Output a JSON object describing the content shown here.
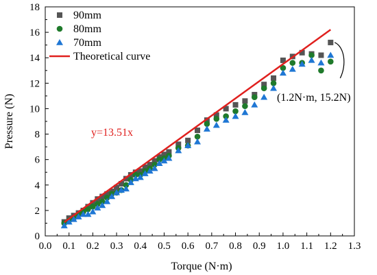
{
  "chart_data": {
    "type": "scatter",
    "xlabel": "Torque (N·m)",
    "ylabel": "Pressure (N)",
    "xlim": [
      0.0,
      1.3
    ],
    "ylim": [
      0,
      18
    ],
    "xticks": [
      "0.0",
      "0.1",
      "0.2",
      "0.3",
      "0.4",
      "0.5",
      "0.6",
      "0.7",
      "0.8",
      "0.9",
      "1.0",
      "1.1",
      "1.2",
      "1.3"
    ],
    "yticks": [
      "0",
      "2",
      "4",
      "6",
      "8",
      "10",
      "12",
      "14",
      "16",
      "18"
    ],
    "legend_position": "top-left",
    "series": [
      {
        "name": "90mm",
        "marker": "square",
        "color": "#555555",
        "x": [
          0.08,
          0.1,
          0.12,
          0.14,
          0.16,
          0.18,
          0.2,
          0.22,
          0.24,
          0.26,
          0.28,
          0.3,
          0.32,
          0.34,
          0.36,
          0.38,
          0.4,
          0.42,
          0.44,
          0.46,
          0.48,
          0.5,
          0.52,
          0.56,
          0.6,
          0.64,
          0.68,
          0.72,
          0.76,
          0.8,
          0.84,
          0.88,
          0.92,
          0.96,
          1.0,
          1.04,
          1.08,
          1.12,
          1.16,
          1.2
        ],
        "y": [
          1.1,
          1.4,
          1.6,
          1.8,
          2.0,
          2.3,
          2.6,
          2.9,
          3.1,
          3.3,
          3.5,
          3.8,
          4.1,
          4.5,
          4.8,
          5.0,
          5.1,
          5.4,
          5.6,
          5.9,
          6.2,
          6.4,
          6.6,
          7.2,
          7.5,
          8.3,
          9.1,
          9.5,
          10.0,
          10.3,
          10.6,
          11.1,
          11.9,
          12.4,
          13.8,
          14.1,
          14.4,
          14.3,
          14.2,
          15.2
        ]
      },
      {
        "name": "80mm",
        "marker": "circle",
        "color": "#1f7a2b",
        "x": [
          0.08,
          0.1,
          0.12,
          0.14,
          0.16,
          0.18,
          0.2,
          0.22,
          0.24,
          0.26,
          0.28,
          0.3,
          0.32,
          0.34,
          0.36,
          0.38,
          0.4,
          0.42,
          0.44,
          0.46,
          0.48,
          0.5,
          0.52,
          0.56,
          0.6,
          0.64,
          0.68,
          0.72,
          0.76,
          0.8,
          0.84,
          0.88,
          0.92,
          0.96,
          1.0,
          1.04,
          1.08,
          1.12,
          1.16,
          1.2
        ],
        "y": [
          1.0,
          1.2,
          1.4,
          1.7,
          1.9,
          2.1,
          2.3,
          2.5,
          2.7,
          3.0,
          3.3,
          3.4,
          3.6,
          4.0,
          4.4,
          4.8,
          4.8,
          5.1,
          5.3,
          5.6,
          6.0,
          6.1,
          6.3,
          6.9,
          7.1,
          7.8,
          8.8,
          9.2,
          9.4,
          9.8,
          10.2,
          10.9,
          11.6,
          12.0,
          13.2,
          13.6,
          13.6,
          14.2,
          13.0,
          13.7
        ]
      },
      {
        "name": "70mm",
        "marker": "triangle",
        "color": "#1f77d4",
        "x": [
          0.08,
          0.1,
          0.12,
          0.14,
          0.16,
          0.18,
          0.2,
          0.22,
          0.24,
          0.26,
          0.28,
          0.3,
          0.32,
          0.34,
          0.36,
          0.38,
          0.4,
          0.42,
          0.44,
          0.46,
          0.48,
          0.5,
          0.52,
          0.56,
          0.6,
          0.64,
          0.68,
          0.72,
          0.76,
          0.8,
          0.84,
          0.88,
          0.92,
          0.96,
          1.0,
          1.04,
          1.08,
          1.12,
          1.16,
          1.2
        ],
        "y": [
          0.8,
          1.1,
          1.3,
          1.5,
          1.7,
          1.7,
          1.9,
          2.2,
          2.4,
          2.7,
          3.1,
          3.4,
          3.6,
          3.7,
          4.2,
          4.5,
          4.6,
          4.9,
          5.1,
          5.3,
          5.7,
          5.9,
          6.1,
          6.7,
          7.1,
          7.4,
          8.4,
          8.7,
          9.1,
          9.4,
          9.7,
          10.3,
          10.9,
          11.6,
          12.8,
          13.1,
          13.5,
          13.8,
          13.6,
          14.2
        ]
      },
      {
        "name": "Theoretical curve",
        "marker": "line",
        "color": "#e0201e",
        "x": [
          0.08,
          1.2
        ],
        "y": [
          1.08,
          16.21
        ]
      }
    ],
    "annotations": {
      "equation": "y=13.51x",
      "equation_color": "#e0201e",
      "point_label": "(1.2N·m, 15.2N)",
      "point": [
        1.2,
        15.2
      ]
    }
  }
}
